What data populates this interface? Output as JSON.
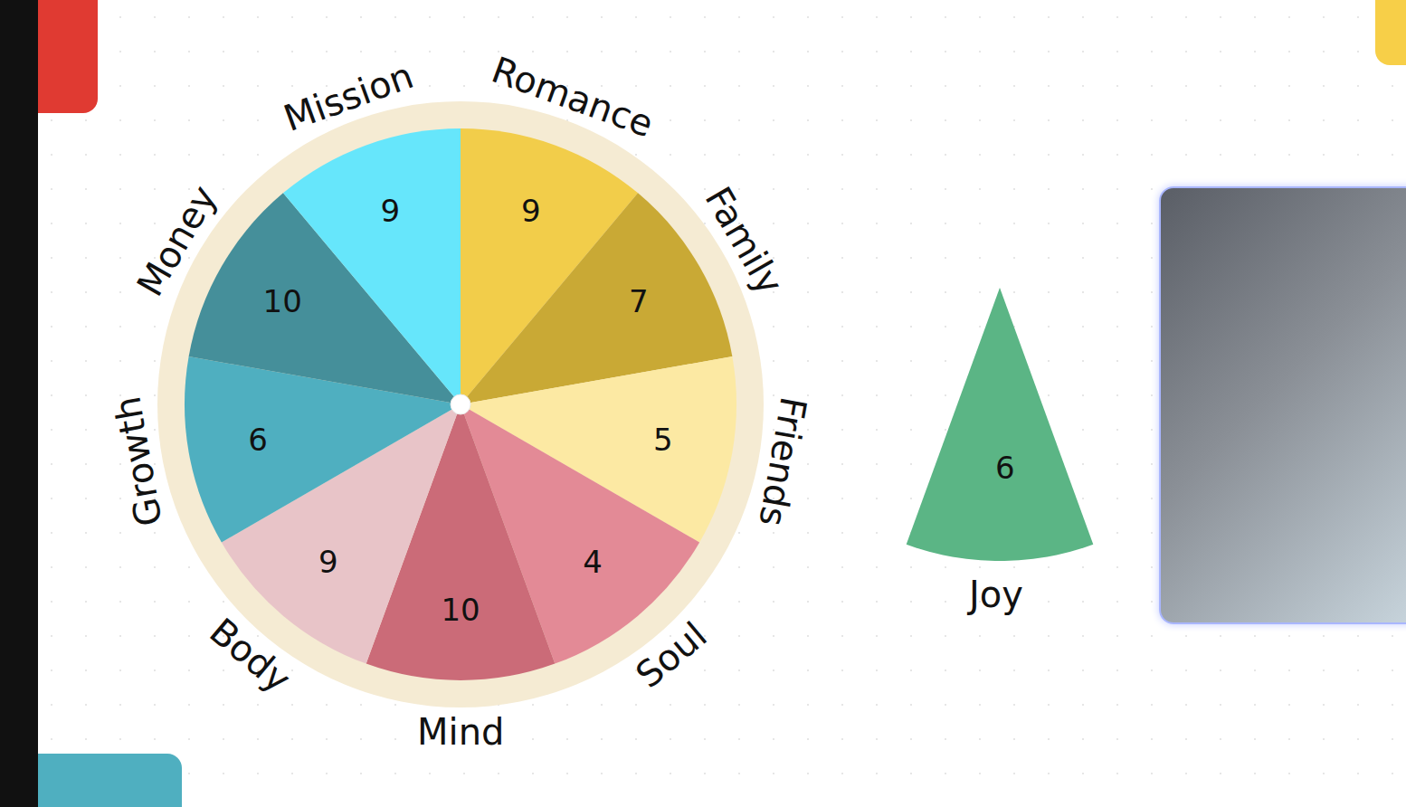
{
  "chart_data": [
    {
      "type": "pie",
      "categories": [
        "Romance",
        "Family",
        "Friends",
        "Soul",
        "Mind",
        "Body",
        "Growth",
        "Money",
        "Mission"
      ],
      "values": [
        9,
        7,
        5,
        4,
        10,
        9,
        6,
        10,
        9
      ],
      "colors": [
        "#F2CD4A",
        "#C9A935",
        "#FCE9A3",
        "#E38A96",
        "#CB6B78",
        "#E8C4C8",
        "#4FAFC0",
        "#458F9A",
        "#66E6FB"
      ],
      "data_labels": true
    },
    {
      "type": "pie",
      "categories": [
        "Joy"
      ],
      "values": [
        6
      ],
      "colors": [
        "#5BB585"
      ],
      "data_labels": true
    }
  ]
}
